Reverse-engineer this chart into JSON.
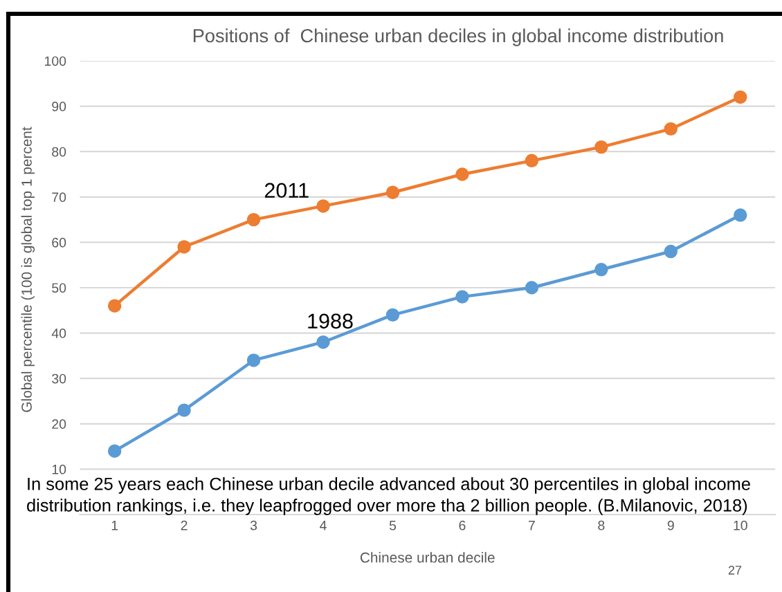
{
  "chart_data": {
    "type": "line",
    "title": "Positions of  Chinese urban deciles in global income distribution",
    "xlabel": "Chinese urban decile",
    "ylabel": "Global percentile (100 is global top 1 percent",
    "categories": [
      "1",
      "2",
      "3",
      "4",
      "5",
      "6",
      "7",
      "8",
      "9",
      "10"
    ],
    "series": [
      {
        "name": "1988",
        "color": "#5b9bd5",
        "values": [
          14,
          23,
          34,
          38,
          44,
          48,
          50,
          54,
          58,
          66
        ]
      },
      {
        "name": "2011",
        "color": "#ed7d31",
        "values": [
          46,
          59,
          65,
          68,
          71,
          75,
          78,
          81,
          85,
          92
        ]
      }
    ],
    "ylim": [
      0,
      100
    ],
    "yticks": [
      {
        "value": 0,
        "label": null
      },
      10,
      20,
      30,
      40,
      50,
      60,
      70,
      80,
      90,
      100
    ],
    "grid": "y",
    "marker": "circle",
    "line_style": "solid",
    "annotations": [
      "In some 25 years each Chinese urban decile advanced about 30 percentiles in global income distribution rankings, i.e. they leapfrogged over more tha 2 billion people. (B.Milanovic, 2018)",
      "27"
    ]
  }
}
